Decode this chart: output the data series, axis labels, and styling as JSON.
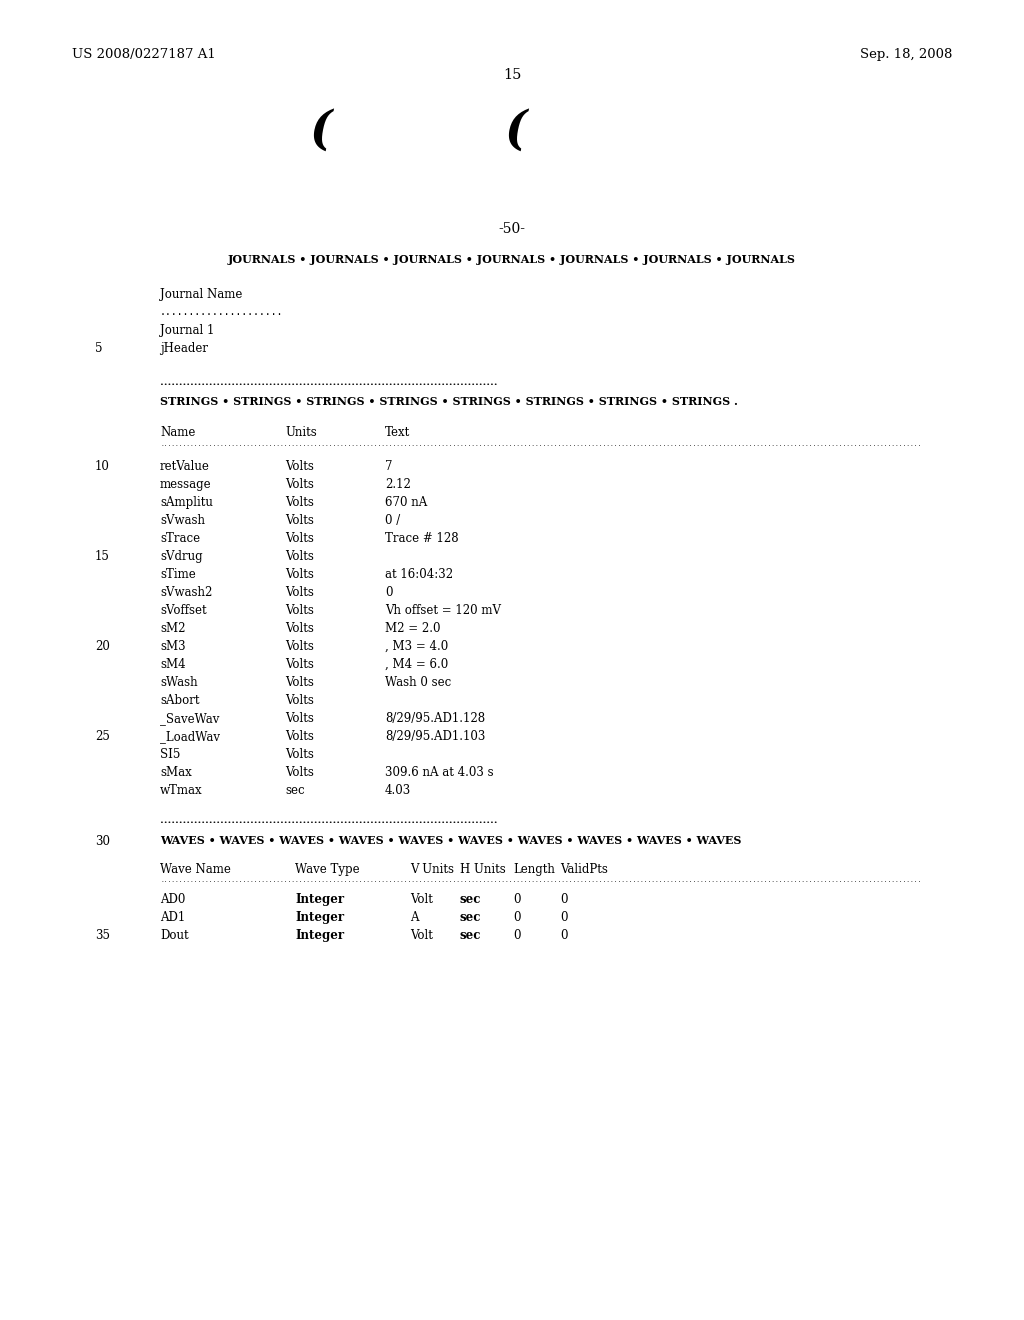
{
  "bg_color": "#ffffff",
  "header_left": "US 2008/0227187 A1",
  "header_right": "Sep. 18, 2008",
  "page_number": "15",
  "figure_number": "-50-",
  "journals_line": "JOURNALS • JOURNALS • JOURNALS • JOURNALS • JOURNALS • JOURNALS • JOURNALS",
  "journal_name_label": "Journal Name",
  "journal_dots": ".....................",
  "journal_1": "Journal 1",
  "line5_label": "5",
  "line5_text": "jHeader",
  "strings_dots": "••••••••••••••••••••••••••••••••••••••••••••••••••••••••••••••••••••••••••••••••••••••••••",
  "strings_line": "STRINGS • STRINGS • STRINGS • STRINGS • STRINGS • STRINGS • STRINGS • STRINGS .",
  "col_headers": [
    "Name",
    "Units",
    "Text"
  ],
  "col_header_dots": "...........................................................................................................................................................................................................",
  "table_rows": [
    {
      "line": "10",
      "name": "retValue",
      "units": "Volts",
      "text": "7"
    },
    {
      "line": "",
      "name": "message",
      "units": "Volts",
      "text": "2.12"
    },
    {
      "line": "",
      "name": "sAmplitu",
      "units": "Volts",
      "text": "670 nA"
    },
    {
      "line": "",
      "name": "sVwash",
      "units": "Volts",
      "text": "0 /"
    },
    {
      "line": "",
      "name": "sTrace",
      "units": "Volts",
      "text": "Trace # 128"
    },
    {
      "line": "15",
      "name": "sVdrug",
      "units": "Volts",
      "text": ""
    },
    {
      "line": "",
      "name": "sTime",
      "units": "Volts",
      "text": "at 16:04:32"
    },
    {
      "line": "",
      "name": "sVwash2",
      "units": "Volts",
      "text": "0"
    },
    {
      "line": "",
      "name": "sVoffset",
      "units": "Volts",
      "text": "Vh offset = 120 mV"
    },
    {
      "line": "",
      "name": "sM2",
      "units": "Volts",
      "text": "M2 = 2.0"
    },
    {
      "line": "20",
      "name": "sM3",
      "units": "Volts",
      "text": ", M3 = 4.0"
    },
    {
      "line": "",
      "name": "sM4",
      "units": "Volts",
      "text": ", M4 = 6.0"
    },
    {
      "line": "",
      "name": "sWash",
      "units": "Volts",
      "text": "Wash 0 sec"
    },
    {
      "line": "",
      "name": "sAbort",
      "units": "Volts",
      "text": ""
    },
    {
      "line": "",
      "name": "_SaveWav",
      "units": "Volts",
      "text": "8/29/95.AD1.128"
    },
    {
      "line": "25",
      "name": "_LoadWav",
      "units": "Volts",
      "text": "8/29/95.AD1.103"
    },
    {
      "line": "",
      "name": "SI5",
      "units": "Volts",
      "text": ""
    },
    {
      "line": "",
      "name": "sMax",
      "units": "Volts",
      "text": "309.6 nA at 4.03 s"
    },
    {
      "line": "",
      "name": "wTmax",
      "units": "sec",
      "text": "4.03"
    }
  ],
  "waves_dots": "••••••••••••••••••••••••••••••••••••••••••••••••••••••••••••••••••••••••••••••••••••••••••",
  "waves_line_num": "30",
  "waves_line": "WAVES • WAVES • WAVES • WAVES • WAVES • WAVES • WAVES • WAVES • WAVES • WAVES",
  "wave_col_headers": [
    "Wave Name",
    "Wave Type",
    "V Units",
    "H Units",
    "Length",
    "ValidPts"
  ],
  "wave_col_dots": "...........................................................................................................................................................................................................",
  "wave_rows": [
    {
      "line": "",
      "name": "AD0",
      "type": "Integer",
      "vunits": "Volt",
      "hunits": "sec",
      "length": "0",
      "validpts": "0"
    },
    {
      "line": "",
      "name": "AD1",
      "type": "Integer",
      "vunits": "A",
      "hunits": "sec",
      "length": "0",
      "validpts": "0"
    },
    {
      "line": "35",
      "name": "Dout",
      "type": "Integer",
      "vunits": "Volt",
      "hunits": "sec",
      "length": "0",
      "validpts": "0"
    }
  ]
}
